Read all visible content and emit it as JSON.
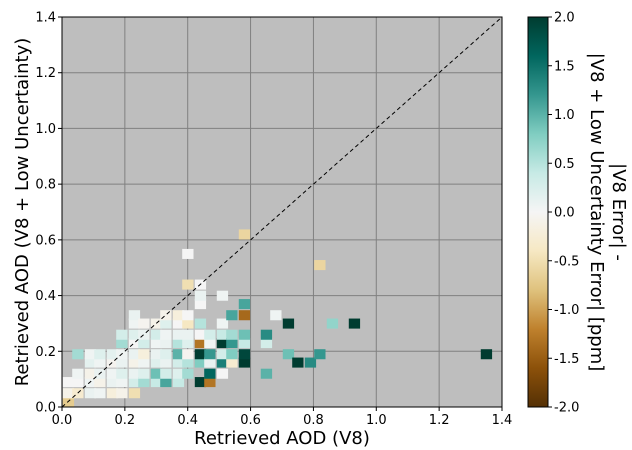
{
  "chart_data": {
    "type": "heatmap",
    "title": "",
    "xlabel": "Retrieved AOD (V8)",
    "ylabel": "Retrieved AOD (V8 + Low Uncertainty)",
    "xlim": [
      0,
      1.4
    ],
    "ylim": [
      0,
      1.4
    ],
    "x_ticks": [
      "0.0",
      "0.2",
      "0.4",
      "0.6",
      "0.8",
      "1.0",
      "1.2",
      "1.4"
    ],
    "y_ticks": [
      "0.0",
      "0.2",
      "0.4",
      "0.6",
      "0.8",
      "1.0",
      "1.2",
      "1.4"
    ],
    "grid": true,
    "background_color": "#bebebe",
    "reference_line": "1:1 dashed",
    "bin_size": 0.035,
    "colorbar": {
      "label_line1": "|V8 Error| -",
      "label_line2": "|V8 + Low Uncertainty Error| [ppm]",
      "range": [
        -2.0,
        2.0
      ],
      "ticks": [
        "-2.0",
        "-1.5",
        "-1.0",
        "-0.5",
        "0.0",
        "0.5",
        "1.0",
        "1.5",
        "2.0"
      ],
      "colormap": "BrBG"
    },
    "cells": [
      {
        "x": 0.02,
        "y": 0.02,
        "v": -0.7
      },
      {
        "x": 0.02,
        "y": 0.05,
        "v": -0.1
      },
      {
        "x": 0.02,
        "y": 0.09,
        "v": 0.0
      },
      {
        "x": 0.05,
        "y": 0.05,
        "v": -0.3
      },
      {
        "x": 0.05,
        "y": 0.09,
        "v": 0.0
      },
      {
        "x": 0.05,
        "y": 0.12,
        "v": 0.05
      },
      {
        "x": 0.05,
        "y": 0.19,
        "v": 0.6
      },
      {
        "x": 0.09,
        "y": 0.05,
        "v": 0.1
      },
      {
        "x": 0.09,
        "y": 0.09,
        "v": 0.05
      },
      {
        "x": 0.09,
        "y": 0.12,
        "v": -0.1
      },
      {
        "x": 0.09,
        "y": 0.16,
        "v": 0.15
      },
      {
        "x": 0.09,
        "y": 0.19,
        "v": 0.05
      },
      {
        "x": 0.12,
        "y": 0.05,
        "v": 0.05
      },
      {
        "x": 0.12,
        "y": 0.09,
        "v": -0.1
      },
      {
        "x": 0.12,
        "y": 0.12,
        "v": 0.1
      },
      {
        "x": 0.12,
        "y": 0.16,
        "v": 0.05
      },
      {
        "x": 0.12,
        "y": 0.19,
        "v": 0.2
      },
      {
        "x": 0.16,
        "y": 0.05,
        "v": -0.2
      },
      {
        "x": 0.16,
        "y": 0.09,
        "v": 0.1
      },
      {
        "x": 0.16,
        "y": 0.12,
        "v": 0.05
      },
      {
        "x": 0.16,
        "y": 0.16,
        "v": -0.05
      },
      {
        "x": 0.16,
        "y": 0.19,
        "v": 0.15
      },
      {
        "x": 0.19,
        "y": 0.05,
        "v": -0.1
      },
      {
        "x": 0.19,
        "y": 0.09,
        "v": 0.05
      },
      {
        "x": 0.19,
        "y": 0.12,
        "v": 0.2
      },
      {
        "x": 0.19,
        "y": 0.16,
        "v": 0.1
      },
      {
        "x": 0.19,
        "y": 0.19,
        "v": 0.05
      },
      {
        "x": 0.19,
        "y": 0.23,
        "v": 0.6
      },
      {
        "x": 0.19,
        "y": 0.26,
        "v": 0.3
      },
      {
        "x": 0.23,
        "y": 0.05,
        "v": -0.5
      },
      {
        "x": 0.23,
        "y": 0.09,
        "v": 0.3
      },
      {
        "x": 0.23,
        "y": 0.12,
        "v": 0.1
      },
      {
        "x": 0.23,
        "y": 0.16,
        "v": -0.1
      },
      {
        "x": 0.23,
        "y": 0.19,
        "v": 0.1
      },
      {
        "x": 0.23,
        "y": 0.23,
        "v": 0.0
      },
      {
        "x": 0.23,
        "y": 0.26,
        "v": 0.2
      },
      {
        "x": 0.23,
        "y": 0.3,
        "v": 0.05
      },
      {
        "x": 0.23,
        "y": 0.33,
        "v": 0.1
      },
      {
        "x": 0.26,
        "y": 0.09,
        "v": 0.6
      },
      {
        "x": 0.26,
        "y": 0.12,
        "v": 0.2
      },
      {
        "x": 0.26,
        "y": 0.16,
        "v": 0.05
      },
      {
        "x": 0.26,
        "y": 0.19,
        "v": -0.2
      },
      {
        "x": 0.26,
        "y": 0.23,
        "v": 0.3
      },
      {
        "x": 0.26,
        "y": 0.26,
        "v": 0.1
      },
      {
        "x": 0.26,
        "y": 0.3,
        "v": -0.05
      },
      {
        "x": 0.3,
        "y": 0.09,
        "v": 0.4
      },
      {
        "x": 0.3,
        "y": 0.12,
        "v": 0.9
      },
      {
        "x": 0.3,
        "y": 0.16,
        "v": 0.2
      },
      {
        "x": 0.3,
        "y": 0.19,
        "v": 0.1
      },
      {
        "x": 0.3,
        "y": 0.23,
        "v": 0.05
      },
      {
        "x": 0.3,
        "y": 0.26,
        "v": 0.3
      },
      {
        "x": 0.3,
        "y": 0.3,
        "v": -0.1
      },
      {
        "x": 0.33,
        "y": 0.09,
        "v": 1.1
      },
      {
        "x": 0.33,
        "y": 0.12,
        "v": 0.3
      },
      {
        "x": 0.33,
        "y": 0.16,
        "v": 0.1
      },
      {
        "x": 0.33,
        "y": 0.19,
        "v": 0.2
      },
      {
        "x": 0.33,
        "y": 0.23,
        "v": 0.1
      },
      {
        "x": 0.33,
        "y": 0.26,
        "v": 0.05
      },
      {
        "x": 0.33,
        "y": 0.3,
        "v": 0.2
      },
      {
        "x": 0.33,
        "y": 0.33,
        "v": -0.1
      },
      {
        "x": 0.37,
        "y": 0.09,
        "v": 0.4
      },
      {
        "x": 0.37,
        "y": 0.12,
        "v": 0.2
      },
      {
        "x": 0.37,
        "y": 0.16,
        "v": 0.3
      },
      {
        "x": 0.37,
        "y": 0.19,
        "v": 1.0
      },
      {
        "x": 0.37,
        "y": 0.23,
        "v": 0.5
      },
      {
        "x": 0.37,
        "y": 0.26,
        "v": 0.1
      },
      {
        "x": 0.37,
        "y": 0.3,
        "v": 0.0
      },
      {
        "x": 0.37,
        "y": 0.33,
        "v": -0.2
      },
      {
        "x": 0.4,
        "y": 0.12,
        "v": 0.6
      },
      {
        "x": 0.4,
        "y": 0.16,
        "v": 0.5
      },
      {
        "x": 0.4,
        "y": 0.19,
        "v": -0.05
      },
      {
        "x": 0.4,
        "y": 0.23,
        "v": 0.2
      },
      {
        "x": 0.4,
        "y": 0.26,
        "v": 0.1
      },
      {
        "x": 0.4,
        "y": 0.3,
        "v": -0.4
      },
      {
        "x": 0.4,
        "y": 0.33,
        "v": 0.0
      },
      {
        "x": 0.4,
        "y": 0.44,
        "v": -0.5
      },
      {
        "x": 0.4,
        "y": 0.55,
        "v": 0.0
      },
      {
        "x": 0.44,
        "y": 0.09,
        "v": 2.0
      },
      {
        "x": 0.44,
        "y": 0.16,
        "v": 0.8
      },
      {
        "x": 0.44,
        "y": 0.19,
        "v": 2.0
      },
      {
        "x": 0.44,
        "y": 0.23,
        "v": -1.3
      },
      {
        "x": 0.44,
        "y": 0.26,
        "v": 0.0
      },
      {
        "x": 0.44,
        "y": 0.3,
        "v": 0.5
      },
      {
        "x": 0.44,
        "y": 0.37,
        "v": 0.0
      },
      {
        "x": 0.44,
        "y": 0.4,
        "v": 0.1
      },
      {
        "x": 0.44,
        "y": 0.44,
        "v": 0.0
      },
      {
        "x": 0.47,
        "y": 0.09,
        "v": -1.3
      },
      {
        "x": 0.47,
        "y": 0.12,
        "v": 1.6
      },
      {
        "x": 0.47,
        "y": 0.16,
        "v": 0.1
      },
      {
        "x": 0.47,
        "y": 0.19,
        "v": 1.2
      },
      {
        "x": 0.47,
        "y": 0.23,
        "v": 0.05
      },
      {
        "x": 0.47,
        "y": 0.26,
        "v": 0.3
      },
      {
        "x": 0.51,
        "y": 0.12,
        "v": 0.0
      },
      {
        "x": 0.51,
        "y": 0.16,
        "v": 1.4
      },
      {
        "x": 0.51,
        "y": 0.19,
        "v": 0.3
      },
      {
        "x": 0.51,
        "y": 0.23,
        "v": 2.0
      },
      {
        "x": 0.51,
        "y": 0.26,
        "v": 0.4
      },
      {
        "x": 0.51,
        "y": 0.3,
        "v": 0.05
      },
      {
        "x": 0.51,
        "y": 0.4,
        "v": 0.05
      },
      {
        "x": 0.54,
        "y": 0.16,
        "v": -0.3
      },
      {
        "x": 0.54,
        "y": 0.19,
        "v": 0.8
      },
      {
        "x": 0.54,
        "y": 0.23,
        "v": 1.2
      },
      {
        "x": 0.54,
        "y": 0.26,
        "v": 0.6
      },
      {
        "x": 0.54,
        "y": 0.33,
        "v": 1.1
      },
      {
        "x": 0.58,
        "y": 0.16,
        "v": 2.0
      },
      {
        "x": 0.58,
        "y": 0.19,
        "v": 1.9
      },
      {
        "x": 0.58,
        "y": 0.23,
        "v": 0.4
      },
      {
        "x": 0.58,
        "y": 0.26,
        "v": 0.9
      },
      {
        "x": 0.58,
        "y": 0.33,
        "v": -1.4
      },
      {
        "x": 0.58,
        "y": 0.37,
        "v": 1.1
      },
      {
        "x": 0.58,
        "y": 0.62,
        "v": -0.6
      },
      {
        "x": 0.65,
        "y": 0.23,
        "v": 0.3
      },
      {
        "x": 0.65,
        "y": 0.26,
        "v": 1.3
      },
      {
        "x": 0.65,
        "y": 0.12,
        "v": 1.0
      },
      {
        "x": 0.68,
        "y": 0.33,
        "v": 0.05
      },
      {
        "x": 0.72,
        "y": 0.19,
        "v": 0.9
      },
      {
        "x": 0.72,
        "y": 0.3,
        "v": 2.0
      },
      {
        "x": 0.75,
        "y": 0.16,
        "v": 2.0
      },
      {
        "x": 0.79,
        "y": 0.16,
        "v": 1.3
      },
      {
        "x": 0.82,
        "y": 0.19,
        "v": 1.2
      },
      {
        "x": 0.82,
        "y": 0.51,
        "v": -0.6
      },
      {
        "x": 0.86,
        "y": 0.3,
        "v": 0.7
      },
      {
        "x": 0.93,
        "y": 0.3,
        "v": 2.0
      },
      {
        "x": 1.35,
        "y": 0.19,
        "v": 2.0
      }
    ]
  }
}
